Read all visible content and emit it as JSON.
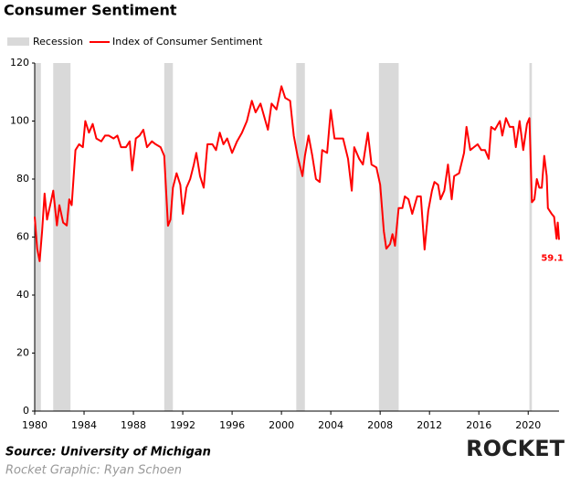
{
  "chart_data": {
    "type": "line",
    "title": "Consumer Sentiment",
    "source": "Source: University of Michigan",
    "credit": "Rocket Graphic: Ryan Schoen",
    "logo": "ROCKET",
    "recession": {
      "name": "Recession",
      "color": "#d9d9d9",
      "ranges": [
        [
          1980.0,
          1980.5
        ],
        [
          1981.5,
          1982.9
        ],
        [
          1990.5,
          1991.2
        ],
        [
          2001.2,
          2001.9
        ],
        [
          2007.9,
          2009.5
        ],
        [
          2020.1,
          2020.3
        ]
      ]
    },
    "x": [
      1980.0,
      1980.2,
      1980.4,
      1980.6,
      1980.8,
      1981.0,
      1981.3,
      1981.5,
      1981.8,
      1982.0,
      1982.3,
      1982.6,
      1982.8,
      1983.0,
      1983.3,
      1983.6,
      1983.9,
      1984.1,
      1984.4,
      1984.7,
      1985.0,
      1985.4,
      1985.7,
      1986.0,
      1986.4,
      1986.7,
      1987.0,
      1987.4,
      1987.7,
      1987.9,
      1988.2,
      1988.5,
      1988.8,
      1989.1,
      1989.5,
      1989.8,
      1990.2,
      1990.5,
      1990.8,
      1991.0,
      1991.2,
      1991.5,
      1991.8,
      1992.0,
      1992.3,
      1992.6,
      1992.9,
      1993.1,
      1993.4,
      1993.7,
      1994.0,
      1994.4,
      1994.7,
      1995.0,
      1995.3,
      1995.6,
      1996.0,
      1996.4,
      1996.8,
      1997.2,
      1997.6,
      1997.9,
      1998.3,
      1998.7,
      1998.9,
      1999.2,
      1999.6,
      2000.0,
      2000.3,
      2000.7,
      2001.0,
      2001.3,
      2001.7,
      2001.9,
      2002.2,
      2002.5,
      2002.8,
      2003.1,
      2003.3,
      2003.7,
      2004.0,
      2004.3,
      2004.7,
      2005.0,
      2005.4,
      2005.7,
      2005.9,
      2006.3,
      2006.6,
      2007.0,
      2007.3,
      2007.7,
      2008.0,
      2008.3,
      2008.5,
      2008.8,
      2009.0,
      2009.2,
      2009.5,
      2009.8,
      2010.0,
      2010.3,
      2010.6,
      2011.0,
      2011.3,
      2011.6,
      2011.9,
      2012.2,
      2012.4,
      2012.7,
      2012.9,
      2013.2,
      2013.5,
      2013.8,
      2014.0,
      2014.4,
      2014.8,
      2015.0,
      2015.3,
      2015.6,
      2015.9,
      2016.2,
      2016.5,
      2016.8,
      2017.0,
      2017.3,
      2017.7,
      2017.9,
      2018.2,
      2018.5,
      2018.8,
      2019.0,
      2019.3,
      2019.6,
      2019.9,
      2020.1,
      2020.3,
      2020.5,
      2020.7,
      2020.9,
      2021.1,
      2021.3,
      2021.5,
      2021.6,
      2021.9,
      2022.1,
      2022.3,
      2022.4,
      2022.5
    ],
    "series": [
      {
        "name": "Index of Consumer Sentiment",
        "color": "#ff0000",
        "values": [
          67,
          56,
          51.7,
          62,
          75,
          66,
          72,
          76,
          64,
          71,
          65,
          64,
          73,
          71,
          90,
          92,
          91,
          100,
          96,
          99,
          94,
          93,
          95,
          95,
          94,
          95,
          91,
          91,
          93,
          83,
          94,
          95,
          97,
          91,
          93,
          92,
          91,
          88,
          63.9,
          66,
          77,
          82,
          78,
          68,
          77,
          80,
          85,
          89,
          81,
          77,
          92,
          92,
          90,
          96,
          92,
          94,
          89,
          93,
          96,
          100,
          107,
          103,
          106,
          100,
          97,
          106,
          104,
          112,
          108,
          107,
          95,
          88,
          81,
          88,
          95,
          88,
          80,
          79,
          90,
          89,
          103.8,
          94,
          94,
          94,
          87,
          76,
          91,
          87,
          85,
          96,
          85,
          84,
          78,
          62,
          56,
          57.6,
          61,
          57,
          70,
          70,
          74,
          73,
          68,
          74,
          74,
          55.7,
          69,
          76,
          79,
          78,
          73,
          76,
          85,
          73,
          81,
          82,
          89,
          98,
          90,
          91,
          92,
          90,
          90,
          87,
          98,
          97,
          100,
          95,
          101,
          98,
          98,
          91,
          100,
          90,
          99,
          101,
          72,
          73,
          80,
          77,
          77,
          88,
          81,
          70,
          68,
          67,
          59.4,
          65,
          59.1
        ]
      }
    ],
    "annotations": [
      {
        "text": "59.1",
        "x": 2022.5,
        "y": 59.1
      }
    ],
    "xlim": [
      1980,
      2022.5
    ],
    "xticks": [
      1980,
      1984,
      1988,
      1992,
      1996,
      2000,
      2004,
      2008,
      2012,
      2016,
      2020
    ],
    "ylim": [
      0,
      120
    ],
    "yticks": [
      0,
      20,
      40,
      60,
      80,
      100,
      120
    ]
  }
}
